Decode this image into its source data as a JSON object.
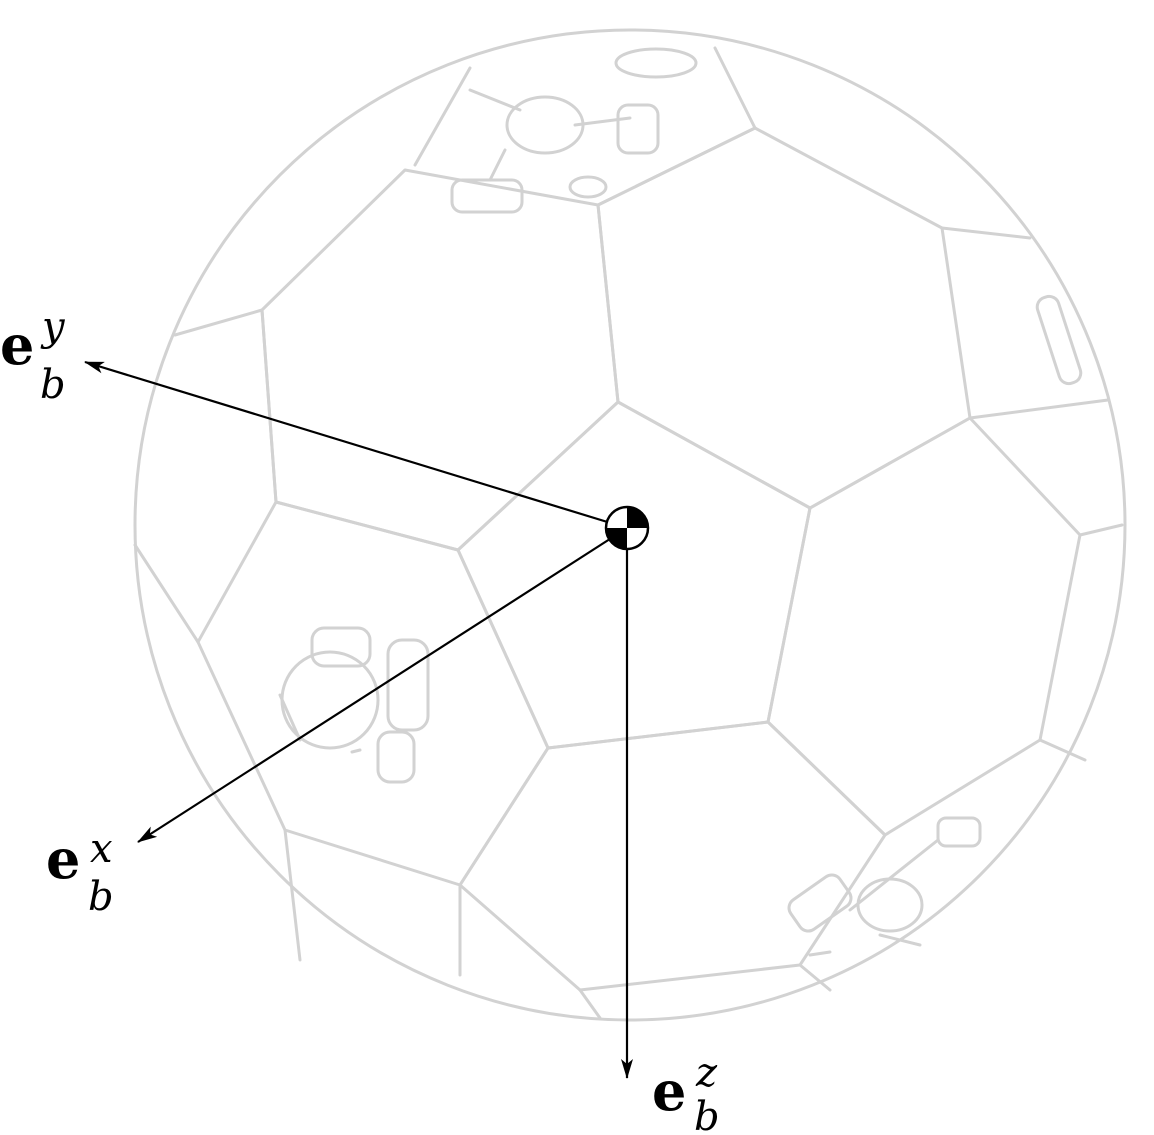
{
  "axes": {
    "x": {
      "base": "e",
      "subscript": "b",
      "superscript": "x"
    },
    "y": {
      "base": "e",
      "subscript": "b",
      "superscript": "y"
    },
    "z": {
      "base": "e",
      "subscript": "b",
      "superscript": "z"
    }
  },
  "colors": {
    "sphere_lines": "#d2d2d2",
    "arrows": "#000000",
    "background": "#ffffff"
  },
  "icons": [
    "center-of-mass-icon"
  ]
}
